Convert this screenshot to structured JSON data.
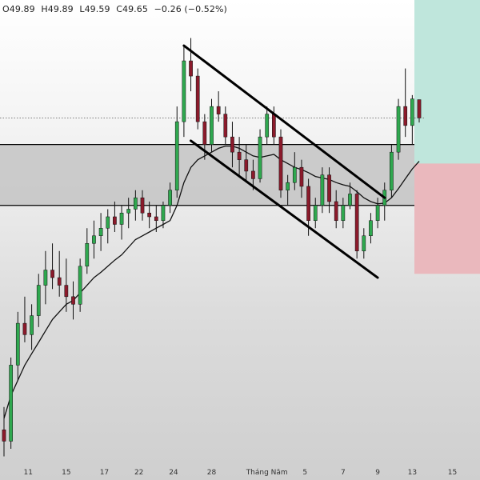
{
  "header": {
    "open": "O49.89",
    "high": "H49.89",
    "low": "L49.59",
    "close": "C49.65",
    "change": "−0.26 (−0.52%)"
  },
  "colors": {
    "up": "#2fa84f",
    "down": "#8b1a2b",
    "wick": "#111111",
    "zone": "#c2c2c2",
    "target": "#bfe6dc",
    "stop": "#eab8bd",
    "line": "#000000"
  },
  "chart_data": {
    "type": "candlestick",
    "x_tick_labels": [
      "11",
      "15",
      "17",
      "22",
      "24",
      "28",
      "Tháng Năm",
      "5",
      "7",
      "9",
      "13",
      "15"
    ],
    "ylim": [
      45.1,
      51.2
    ],
    "current_price": 49.65,
    "candles": [
      [
        45.55,
        45.85,
        45.2,
        45.4
      ],
      [
        45.4,
        46.5,
        45.3,
        46.4
      ],
      [
        46.4,
        47.1,
        46.2,
        46.95
      ],
      [
        46.95,
        47.3,
        46.7,
        46.8
      ],
      [
        46.8,
        47.2,
        46.6,
        47.05
      ],
      [
        47.05,
        47.6,
        46.9,
        47.45
      ],
      [
        47.45,
        47.9,
        47.2,
        47.65
      ],
      [
        47.65,
        48.0,
        47.4,
        47.55
      ],
      [
        47.55,
        47.9,
        47.3,
        47.45
      ],
      [
        47.45,
        47.8,
        47.1,
        47.3
      ],
      [
        47.3,
        47.5,
        47.0,
        47.2
      ],
      [
        47.2,
        47.8,
        47.1,
        47.7
      ],
      [
        47.7,
        48.2,
        47.6,
        48.0
      ],
      [
        48.0,
        48.3,
        47.8,
        48.1
      ],
      [
        48.1,
        48.4,
        47.9,
        48.2
      ],
      [
        48.2,
        48.45,
        48.0,
        48.35
      ],
      [
        48.35,
        48.55,
        48.15,
        48.25
      ],
      [
        48.25,
        48.5,
        48.05,
        48.4
      ],
      [
        48.4,
        48.6,
        48.2,
        48.45
      ],
      [
        48.45,
        48.7,
        48.3,
        48.6
      ],
      [
        48.6,
        48.7,
        48.3,
        48.4
      ],
      [
        48.4,
        48.55,
        48.2,
        48.35
      ],
      [
        48.35,
        48.5,
        48.15,
        48.3
      ],
      [
        48.3,
        48.55,
        48.2,
        48.5
      ],
      [
        48.5,
        48.8,
        48.4,
        48.7
      ],
      [
        48.7,
        49.8,
        48.6,
        49.6
      ],
      [
        49.6,
        50.6,
        49.4,
        50.4
      ],
      [
        50.4,
        50.7,
        50.0,
        50.2
      ],
      [
        50.2,
        50.3,
        49.5,
        49.6
      ],
      [
        49.6,
        49.7,
        49.1,
        49.3
      ],
      [
        49.3,
        49.9,
        49.2,
        49.8
      ],
      [
        49.8,
        50.0,
        49.6,
        49.7
      ],
      [
        49.7,
        49.8,
        49.3,
        49.4
      ],
      [
        49.4,
        49.6,
        49.0,
        49.2
      ],
      [
        49.2,
        49.4,
        48.9,
        49.1
      ],
      [
        49.1,
        49.3,
        48.8,
        48.95
      ],
      [
        48.95,
        49.1,
        48.7,
        48.85
      ],
      [
        48.85,
        49.5,
        48.8,
        49.4
      ],
      [
        49.4,
        49.8,
        49.3,
        49.7
      ],
      [
        49.7,
        49.8,
        49.3,
        49.4
      ],
      [
        49.4,
        49.5,
        48.6,
        48.7
      ],
      [
        48.7,
        48.9,
        48.5,
        48.8
      ],
      [
        48.8,
        49.2,
        48.7,
        49.0
      ],
      [
        49.0,
        49.1,
        48.6,
        48.75
      ],
      [
        48.75,
        48.85,
        48.1,
        48.3
      ],
      [
        48.3,
        48.6,
        48.2,
        48.5
      ],
      [
        48.5,
        49.0,
        48.4,
        48.9
      ],
      [
        48.9,
        49.0,
        48.4,
        48.55
      ],
      [
        48.55,
        48.7,
        48.2,
        48.3
      ],
      [
        48.3,
        48.6,
        48.2,
        48.5
      ],
      [
        48.5,
        48.8,
        48.45,
        48.65
      ],
      [
        48.65,
        48.7,
        47.8,
        47.9
      ],
      [
        47.9,
        48.2,
        47.8,
        48.1
      ],
      [
        48.1,
        48.4,
        48.0,
        48.3
      ],
      [
        48.3,
        48.6,
        48.2,
        48.5
      ],
      [
        48.5,
        48.8,
        48.3,
        48.7
      ],
      [
        48.7,
        49.3,
        48.6,
        49.2
      ],
      [
        49.2,
        49.9,
        49.1,
        49.8
      ],
      [
        49.8,
        50.3,
        49.4,
        49.55
      ],
      [
        49.55,
        49.95,
        49.3,
        49.9
      ],
      [
        49.89,
        49.89,
        49.59,
        49.65
      ]
    ],
    "moving_average": [
      45.7,
      46.0,
      46.2,
      46.4,
      46.55,
      46.7,
      46.85,
      47.0,
      47.1,
      47.2,
      47.25,
      47.35,
      47.45,
      47.55,
      47.62,
      47.7,
      47.78,
      47.85,
      47.95,
      48.05,
      48.1,
      48.15,
      48.2,
      48.25,
      48.3,
      48.5,
      48.8,
      49.0,
      49.1,
      49.15,
      49.2,
      49.25,
      49.28,
      49.28,
      49.25,
      49.2,
      49.15,
      49.13,
      49.15,
      49.17,
      49.1,
      49.05,
      49.0,
      48.97,
      48.93,
      48.88,
      48.86,
      48.84,
      48.8,
      48.77,
      48.75,
      48.68,
      48.6,
      48.55,
      48.52,
      48.53,
      48.6,
      48.72,
      48.85,
      48.98,
      49.08
    ],
    "support_resistance_zone": [
      48.5,
      49.3
    ],
    "channel_upper_line": [
      [
        26,
        50.6
      ],
      [
        55,
        48.6
      ]
    ],
    "channel_lower_line": [
      [
        27,
        49.35
      ],
      [
        54,
        47.55
      ]
    ],
    "dotted_price_line": 49.65,
    "position_entry": 49.05,
    "position_target_top": 51.2,
    "position_stop_bottom": 47.6
  }
}
